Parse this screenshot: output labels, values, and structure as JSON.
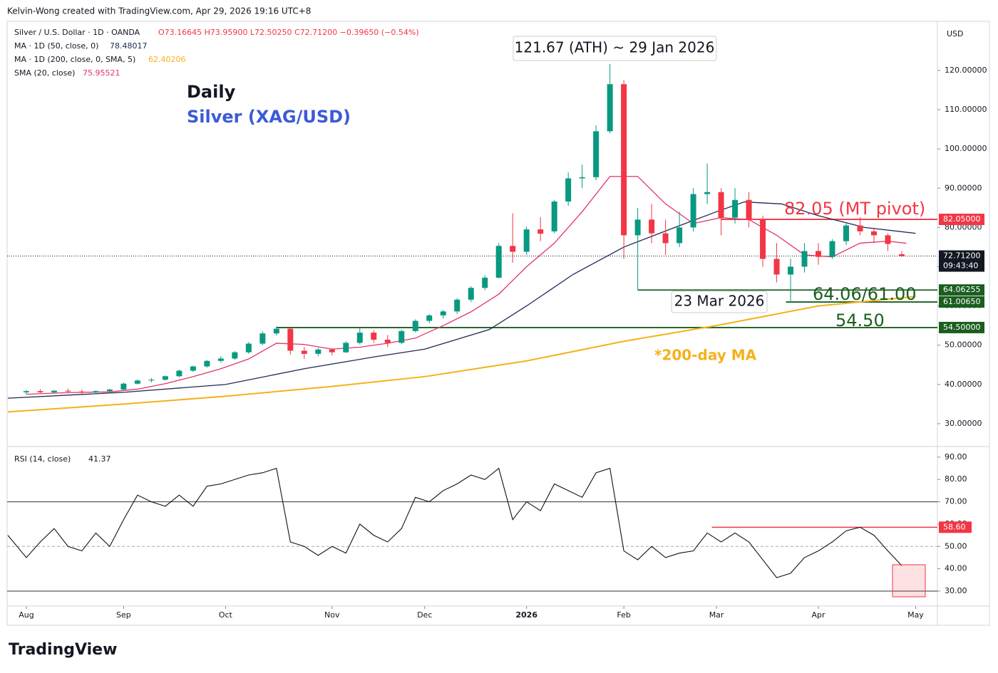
{
  "header": {
    "credit": "Kelvin-Wong created with TradingView.com, Apr 29, 2026 19:16 UTC+8",
    "currency": "USD",
    "brand": "TradingView"
  },
  "chart_data": [
    {
      "type": "candlestick",
      "symbol": "Silver / U.S. Dollar · 1D · OANDA",
      "ohlc_label": "O73.16645 H73.95900 L72.50250 C72.71200 −0.39650 (−0.54%)",
      "title": "Daily",
      "subtitle": "Silver (XAG/USD)",
      "up_color": "#089981",
      "down_color": "#f23645",
      "x": [
        0,
        3,
        6,
        9,
        12,
        15,
        18,
        21,
        24,
        27,
        30,
        33,
        36,
        39,
        42,
        45,
        48,
        51,
        54,
        57,
        60,
        63,
        66,
        69,
        72,
        75,
        78,
        81,
        84,
        87,
        90,
        93,
        96,
        99,
        102,
        105,
        108,
        111,
        114,
        117,
        120,
        123,
        126,
        129,
        132,
        135,
        138,
        141,
        144,
        147,
        150,
        153,
        156,
        159,
        162,
        165,
        168,
        171,
        174,
        177,
        180,
        183,
        186,
        189
      ],
      "open": [
        38,
        38.3,
        38,
        38.4,
        38.2,
        38,
        38.3,
        38.7,
        40.2,
        41,
        41.2,
        42.1,
        43.5,
        44.6,
        46,
        46.6,
        48.2,
        50.4,
        53,
        54.2,
        48.6,
        47.8,
        48.9,
        48.2,
        50.6,
        53.2,
        51.4,
        50.6,
        53.6,
        56.2,
        57.6,
        58.6,
        61.6,
        64.6,
        67.2,
        75.3,
        73.8,
        79.5,
        79,
        86.6,
        92.5,
        92.8,
        104.5,
        116.5,
        78,
        82,
        78.5,
        76,
        80,
        88.5,
        89,
        82.5,
        87,
        82,
        72,
        68,
        70,
        74,
        72.5,
        76.5,
        80.5,
        79,
        78,
        73.16645
      ],
      "high": [
        38.6,
        38.8,
        38.6,
        38.9,
        38.7,
        38.5,
        38.9,
        40.5,
        41.3,
        41.6,
        42.3,
        43.8,
        44.8,
        46.2,
        47.2,
        48.5,
        50.8,
        53.5,
        54.8,
        54.4,
        49.5,
        49.3,
        49.2,
        51,
        54.3,
        53.8,
        52.6,
        54,
        56.6,
        58,
        59,
        62,
        65,
        67.8,
        76,
        83.6,
        80.2,
        82.6,
        87,
        94,
        96,
        106,
        121.67,
        117.5,
        85,
        86,
        82,
        84,
        90,
        96.3,
        90,
        90,
        89,
        83,
        76,
        72,
        76,
        76,
        77,
        81,
        82.6,
        80,
        78.5,
        73.959
      ],
      "low": [
        37.4,
        37.8,
        37.6,
        37.9,
        37.6,
        37.5,
        38,
        38.5,
        40,
        40.5,
        41,
        41.8,
        43.2,
        44.3,
        45.5,
        46.3,
        47.8,
        50,
        52.5,
        47.6,
        46.5,
        47.2,
        47.4,
        48,
        50.2,
        50.6,
        49.5,
        50.3,
        53.3,
        55.6,
        56.8,
        58,
        61,
        64,
        67,
        71,
        73,
        76.5,
        78.5,
        85.5,
        90,
        92,
        104,
        72,
        64.06,
        76,
        73,
        75,
        79,
        86,
        78,
        81,
        80,
        70,
        66,
        61,
        68.5,
        70.5,
        72,
        75.5,
        78,
        76,
        74,
        72.5025
      ],
      "close": [
        38.3,
        38,
        38.4,
        38.2,
        38,
        38.3,
        38.7,
        40.2,
        41,
        41.2,
        42.1,
        43.5,
        44.6,
        46,
        46.6,
        48.2,
        50.4,
        53,
        54.2,
        48.6,
        47.8,
        48.9,
        48.2,
        50.6,
        53.2,
        51.4,
        50.6,
        53.6,
        56.2,
        57.6,
        58.6,
        61.6,
        64.6,
        67.2,
        75.3,
        73.8,
        79.5,
        78.4,
        86.6,
        92.5,
        92.8,
        104.5,
        116.5,
        78,
        82,
        78.5,
        76,
        80,
        88.5,
        89,
        82.5,
        87,
        82,
        72,
        68,
        70,
        74,
        72.5,
        76.5,
        80.5,
        79,
        78,
        75.8,
        72.712
      ],
      "series": [
        {
          "name": "MA · 1D (50, close, 0)",
          "last_label": "78.48017",
          "color": "#1e2a55",
          "x": [
            -4,
            21,
            43,
            60,
            75,
            86,
            100,
            108,
            118,
            129,
            140,
            149,
            155,
            163,
            171,
            181,
            192
          ],
          "values": [
            36.5,
            38,
            40,
            44,
            47,
            49,
            54,
            60,
            68,
            75,
            80,
            84,
            86.5,
            86,
            83,
            80,
            78.5
          ]
        },
        {
          "name": "MA · 1D (200, close, 0, SMA, 5)",
          "last_label": "62.40206",
          "color": "#f5b11a",
          "x": [
            -4,
            21,
            43,
            66,
            86,
            108,
            129,
            149,
            171,
            192
          ],
          "values": [
            33,
            35,
            37,
            39.5,
            42,
            46,
            51,
            55,
            60,
            62.4
          ]
        },
        {
          "name": "SMA (20, close)",
          "last_label": "75.95521",
          "color": "#e2346a",
          "x": [
            0,
            6,
            12,
            18,
            24,
            30,
            36,
            42,
            48,
            54,
            60,
            66,
            72,
            78,
            84,
            90,
            96,
            102,
            108,
            114,
            120,
            126,
            132,
            138,
            144,
            150,
            156,
            162,
            168,
            174,
            180,
            186,
            190
          ],
          "values": [
            37.5,
            37.8,
            38,
            38.1,
            38.8,
            40.2,
            42,
            44,
            46.5,
            50.5,
            50.2,
            49,
            49.5,
            50.5,
            51.8,
            55,
            58.5,
            63,
            70,
            76,
            84,
            93,
            93,
            86,
            81,
            82.5,
            82,
            78,
            73,
            72.5,
            76,
            76.5,
            75.96
          ]
        }
      ],
      "levels": [
        {
          "value": 82.05,
          "label": "82.05000",
          "color": "#f23645",
          "start": 150
        },
        {
          "value": 64.06255,
          "label": "64.06255",
          "color": "#1b5e20",
          "start": 132
        },
        {
          "value": 61.0065,
          "label": "61.00650",
          "color": "#1b5e20",
          "start": 164
        },
        {
          "value": 54.5,
          "label": "54.50000",
          "color": "#1b5e20",
          "start": 54
        }
      ],
      "last_price": {
        "value": 72.712,
        "label": "72.71200",
        "countdown": "09:43:40"
      },
      "annotations": {
        "ath": "121.67 (ATH) ~ 29 Jan 2026",
        "pivot": "82.05 (MT pivot)",
        "support": "64.06/61.00",
        "support2": "54.50",
        "low_date": "23 Mar 2026",
        "ma200": "*200-day MA"
      },
      "ylim": [
        24.55,
        132.5
      ],
      "yticks": [
        {
          "value": 30,
          "label": "30.00000"
        },
        {
          "value": 40,
          "label": "40.00000"
        },
        {
          "value": 50,
          "label": "50.00000"
        },
        {
          "value": 60,
          "label": "60.00000"
        },
        {
          "value": 70,
          "label": "70.00000"
        },
        {
          "value": 80,
          "label": "80.00000"
        },
        {
          "value": 90,
          "label": "90.00000"
        },
        {
          "value": 100,
          "label": "100.00000"
        },
        {
          "value": 110,
          "label": "110.00000"
        },
        {
          "value": 120,
          "label": "120.00000"
        }
      ],
      "xlim": [
        -4.15,
        196.7
      ],
      "xticks": [
        {
          "value": 0,
          "label": "Aug"
        },
        {
          "value": 21,
          "label": "Sep"
        },
        {
          "value": 43,
          "label": "Oct"
        },
        {
          "value": 66,
          "label": "Nov"
        },
        {
          "value": 86,
          "label": "Dec"
        },
        {
          "value": 108,
          "label": "2026"
        },
        {
          "value": 129,
          "label": "Feb"
        },
        {
          "value": 149,
          "label": "Mar"
        },
        {
          "value": 171,
          "label": "Apr"
        },
        {
          "value": 192,
          "label": "May"
        }
      ]
    },
    {
      "type": "line",
      "name": "RSI (14, close)",
      "last_label": "41.37",
      "color": "#111111",
      "x": [
        -4,
        0,
        3,
        6,
        9,
        12,
        15,
        18,
        21,
        24,
        27,
        30,
        33,
        36,
        39,
        42,
        45,
        48,
        51,
        54,
        57,
        60,
        63,
        66,
        69,
        72,
        75,
        78,
        81,
        84,
        87,
        90,
        93,
        96,
        99,
        102,
        105,
        108,
        111,
        114,
        117,
        120,
        123,
        126,
        129,
        132,
        135,
        138,
        141,
        144,
        147,
        150,
        153,
        156,
        159,
        162,
        165,
        168,
        171,
        174,
        177,
        180,
        183,
        186,
        189
      ],
      "values": [
        55,
        45,
        52,
        58,
        50,
        48,
        56,
        50,
        62,
        73,
        70,
        68,
        73,
        68,
        77,
        78,
        80,
        82,
        83,
        85,
        52,
        50,
        46,
        50,
        47,
        60,
        55,
        52,
        58,
        72,
        70,
        75,
        78,
        82,
        80,
        85,
        62,
        70,
        66,
        78,
        75,
        72,
        83,
        85,
        48,
        44,
        50,
        45,
        47,
        48,
        56,
        52,
        56,
        52,
        44,
        36,
        38,
        45,
        48,
        52,
        57,
        58.6,
        55,
        48,
        41.37
      ],
      "levels": [
        {
          "value": 70,
          "style": "solid"
        },
        {
          "value": 50,
          "style": "dashed"
        },
        {
          "value": 30,
          "style": "solid"
        }
      ],
      "resistance": {
        "value": 58.6,
        "label": "58.60",
        "start": 148
      },
      "ylim": [
        23.6,
        93.8
      ],
      "yticks": [
        {
          "value": 30,
          "label": "30.00"
        },
        {
          "value": 40,
          "label": "40.00"
        },
        {
          "value": 50,
          "label": "50.00"
        },
        {
          "value": 60,
          "label": "60.00"
        },
        {
          "value": 70,
          "label": "70.00"
        },
        {
          "value": 80,
          "label": "80.00"
        },
        {
          "value": 90,
          "label": "90.00"
        }
      ],
      "xlim": [
        -4.15,
        196.7
      ]
    }
  ]
}
